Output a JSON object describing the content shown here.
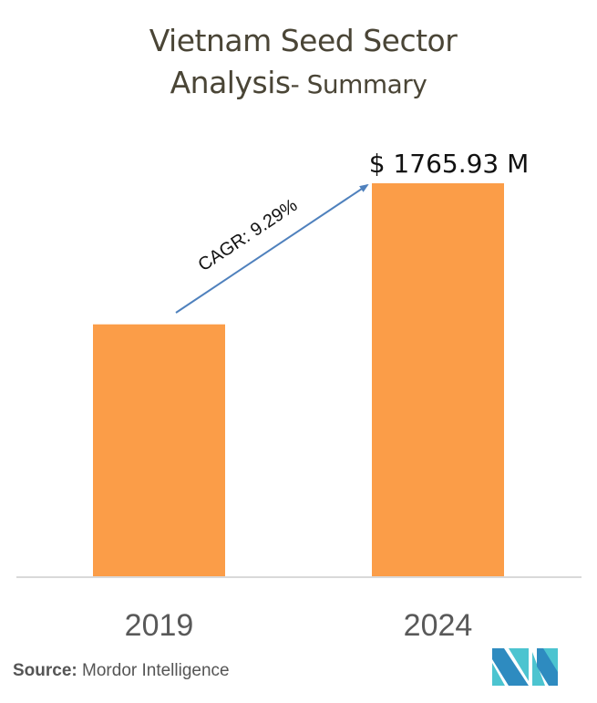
{
  "title": {
    "line1": "Vietnam Seed Sector",
    "line2_main": "Analysis",
    "line2_sub": "- Summary"
  },
  "chart_data": {
    "type": "bar",
    "title": "Vietnam Seed Sector Analysis- Summary",
    "categories": [
      "2019",
      "2024"
    ],
    "values": [
      1132.0,
      1765.93
    ],
    "unit": "USD Million",
    "data_labels": [
      "",
      "$ 1765.93 M"
    ],
    "annotation": {
      "text": "CAGR: 9.29%",
      "type": "arrow",
      "from_category": "2019",
      "to_category": "2024"
    },
    "xlabel": "",
    "ylabel": "",
    "ylim": [
      0,
      1765.93
    ],
    "grid": false,
    "legend": "none",
    "colors": {
      "bar": "#fb9d48",
      "arrow": "#4f81bd",
      "baseline": "#d9d9d9",
      "tick_label": "#595959",
      "data_label": "#111111"
    }
  },
  "source": {
    "label": "Source:",
    "value": "Mordor Intelligence"
  },
  "logo": {
    "name": "mordor-intelligence-logo",
    "colors": {
      "dark": "#2e8bc0",
      "light": "#4cc4d0"
    }
  }
}
